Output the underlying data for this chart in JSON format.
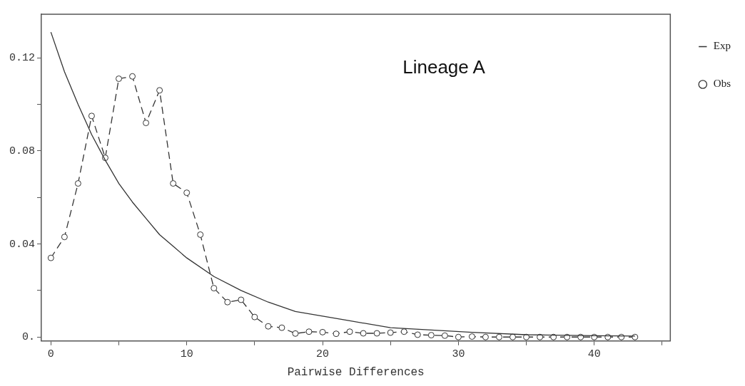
{
  "chart_data": {
    "type": "line",
    "title": "Lineage A",
    "xlabel": "Pairwise Differences",
    "xlim": [
      -0.7,
      45.6
    ],
    "ylim": [
      -0.0017,
      0.1387
    ],
    "xticks": [
      0,
      {
        "value": 5,
        "label": null
      },
      10,
      {
        "value": 15,
        "label": null
      },
      20,
      {
        "value": 25,
        "label": null
      },
      30,
      {
        "value": 35,
        "label": null
      },
      40,
      {
        "value": 45,
        "label": null
      }
    ],
    "yticks": [
      {
        "value": 0,
        "label": "0."
      },
      {
        "value": 0.02,
        "label": null
      },
      {
        "value": 0.04,
        "label": "0.04"
      },
      {
        "value": 0.06,
        "label": null
      },
      {
        "value": 0.08,
        "label": "0.08"
      },
      {
        "value": 0.1,
        "label": null
      },
      {
        "value": 0.12,
        "label": "0.12"
      }
    ],
    "grid": false,
    "legend": "top right",
    "series": [
      {
        "name": "Exp",
        "color": "#333333",
        "line_style": "solid",
        "marker": "none",
        "x": [
          0,
          1,
          2,
          3,
          4,
          5,
          6,
          7,
          8,
          9,
          10,
          12,
          14,
          16,
          18,
          20,
          22,
          25,
          28,
          31,
          35,
          40,
          43
        ],
        "values": [
          0.131,
          0.114,
          0.1,
          0.087,
          0.076,
          0.066,
          0.058,
          0.051,
          0.044,
          0.039,
          0.034,
          0.026,
          0.02,
          0.015,
          0.011,
          0.009,
          0.007,
          0.004,
          0.003,
          0.002,
          0.001,
          0.0006,
          0.0004
        ]
      },
      {
        "name": "Obs",
        "color": "#333333",
        "line_style": "dashed",
        "marker": "circle",
        "x": [
          0,
          1,
          2,
          3,
          4,
          5,
          6,
          7,
          8,
          9,
          10,
          11,
          12,
          13,
          14,
          15,
          16,
          17,
          18,
          19,
          20,
          21,
          22,
          23,
          24,
          25,
          26,
          27,
          28,
          29,
          30,
          31,
          32,
          33,
          34,
          35,
          36,
          37,
          38,
          39,
          40,
          41,
          42,
          43
        ],
        "values": [
          0.034,
          0.043,
          0.066,
          0.095,
          0.077,
          0.111,
          0.112,
          0.092,
          0.106,
          0.066,
          0.062,
          0.044,
          0.021,
          0.015,
          0.016,
          0.0086,
          0.0046,
          0.004,
          0.0015,
          0.0023,
          0.0021,
          0.0014,
          0.0023,
          0.0016,
          0.0016,
          0.0019,
          0.0023,
          0.001,
          0.0008,
          0.0006,
          0,
          0.0002,
          0,
          0,
          0,
          0,
          0,
          0,
          0,
          0,
          0,
          0,
          0,
          0
        ]
      }
    ]
  }
}
